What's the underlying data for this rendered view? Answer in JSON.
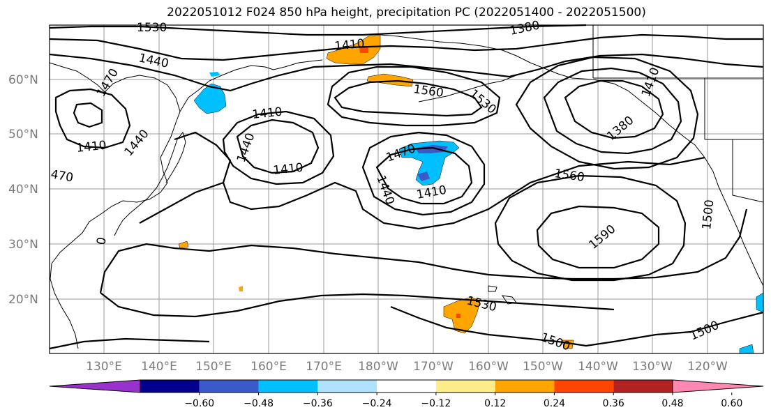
{
  "title": "2022051012 F024 850 hPa height, precipitation PC (2022051400 - 2022051500)",
  "lat_ticks": [
    "60°N",
    "50°N",
    "40°N",
    "30°N",
    "20°N"
  ],
  "lon_ticks": [
    "130°E",
    "140°E",
    "150°E",
    "160°E",
    "170°E",
    "180°W",
    "170°W",
    "160°W",
    "150°W",
    "140°W",
    "130°W",
    "120°W"
  ],
  "contour_labels": [
    "1380",
    "1530",
    "1440",
    "1410",
    "1470",
    "1560",
    "1530",
    "1410",
    "1410",
    "1440",
    "1410",
    "470",
    "1440",
    "1410",
    "1470",
    "1440",
    "1410",
    "1560",
    "1590",
    "1380",
    "1530",
    "1500",
    "1500",
    "1500",
    "0"
  ],
  "colorbar": {
    "labels": [
      "−0.60",
      "−0.48",
      "−0.36",
      "−0.24",
      "−0.12",
      "0.12",
      "0.24",
      "0.36",
      "0.48",
      "0.60"
    ],
    "colors": [
      "#9932CC",
      "#00008B",
      "#3A5BC7",
      "#00BFFF",
      "#B0E2FF",
      "#FFFFFF",
      "#FFEC8B",
      "#FFA500",
      "#FF4500",
      "#B22222",
      "#FF88B2"
    ]
  },
  "map_colors": {
    "ocean": "#ffffff",
    "contour": "#000000",
    "grid": "#9a9a9a",
    "coast": "#000000"
  }
}
